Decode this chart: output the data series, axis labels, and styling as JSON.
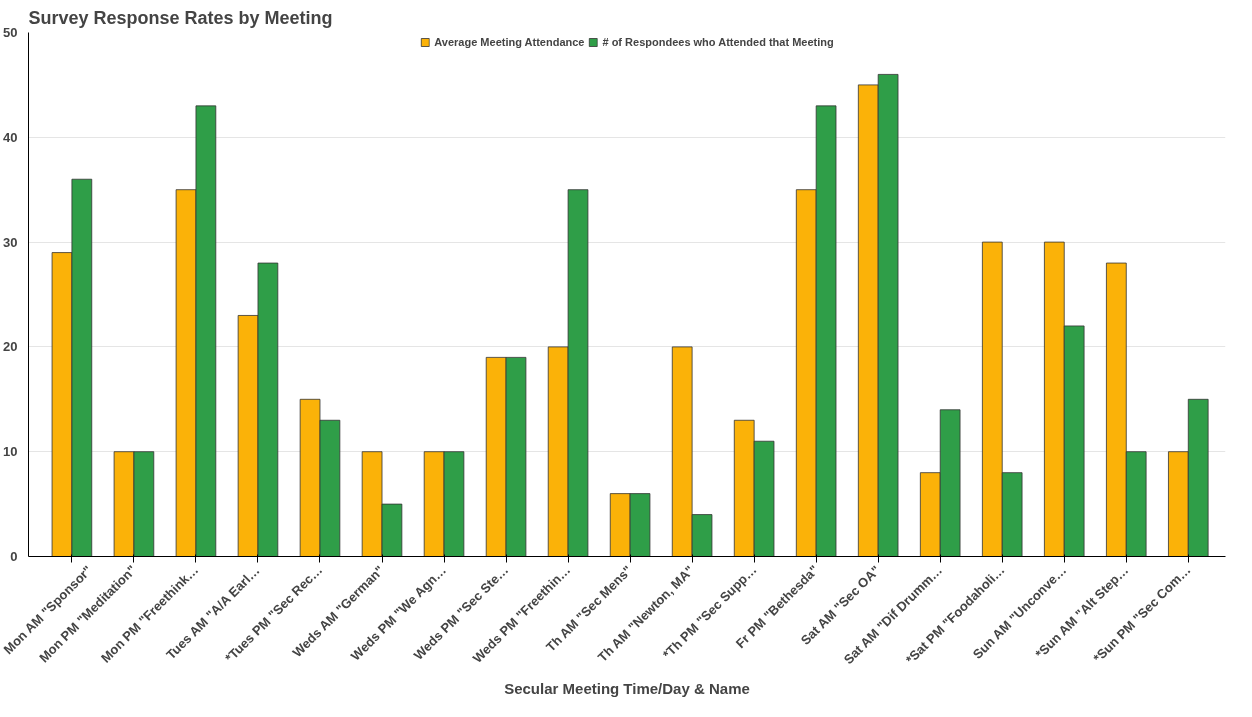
{
  "chart_data": {
    "type": "bar",
    "title": "Survey Response Rates by Meeting",
    "xlabel": "Secular Meeting Time/Day & Name",
    "categories": [
      "Mon AM \"Sponsor\"",
      "Mon PM \"Meditation\"",
      "Mon PM \"Freethink…",
      "Tues AM \"A/A Earl…",
      "*Tues PM \"Sec Rec…",
      "Weds AM \"German\"",
      "Weds PM \"We Agn…",
      "Weds PM \"Sec Ste…",
      "Weds PM \"Freethin…",
      "Th AM \"Sec Mens\"",
      "Th AM \"Newton, MA\"",
      "*Th PM \"Sec Supp…",
      "Fr PM \"Bethesda\"",
      "Sat AM \"Sec OA\"",
      "Sat AM \"Dif Drumm…",
      "*Sat PM \"Foodaholi…",
      "Sun AM \"Unconve…",
      "*Sun AM \"Alt Step…",
      "*Sun PM \"Sec Com…"
    ],
    "series": [
      {
        "name": "Average Meeting Attendance",
        "color": "#fbb208",
        "values": [
          29,
          10,
          35,
          23,
          15,
          10,
          10,
          19,
          20,
          6,
          20,
          13,
          35,
          45,
          8,
          30,
          30,
          28,
          10
        ]
      },
      {
        "name": "# of Respondees who Attended that Meeting",
        "color": "#2f9e48",
        "values": [
          36,
          10,
          43,
          28,
          13,
          5,
          10,
          19,
          35,
          6,
          4,
          11,
          43,
          46,
          14,
          8,
          22,
          10,
          15
        ]
      }
    ],
    "ylim": [
      0,
      50
    ],
    "yticks": [
      0,
      10,
      20,
      30,
      40,
      50
    ],
    "grid": "y",
    "legend": "top"
  }
}
